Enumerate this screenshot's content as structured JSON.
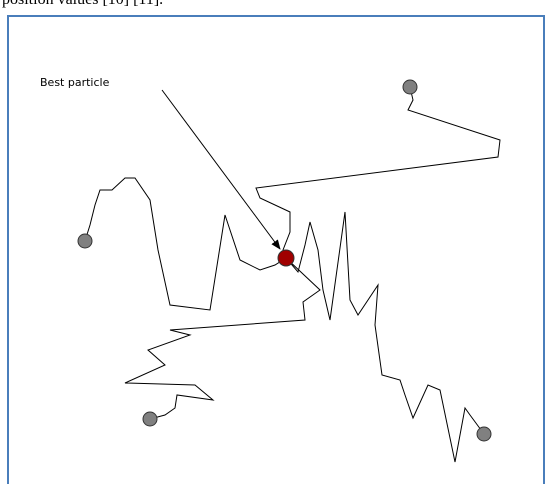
{
  "caption": "position values [10] [11].",
  "diagram": {
    "label": "Best particle"
  }
}
